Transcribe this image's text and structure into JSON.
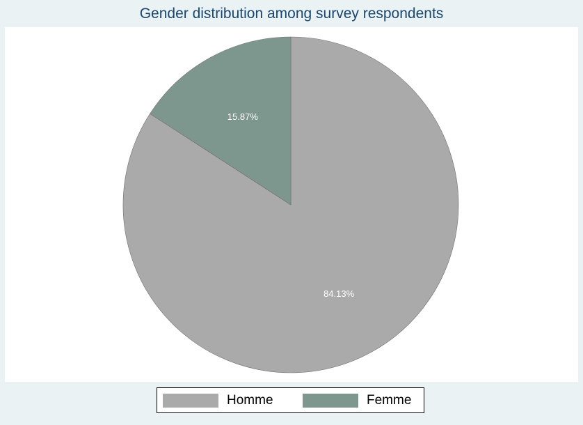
{
  "chart_data": {
    "type": "pie",
    "title": "Gender distribution among survey respondents",
    "slices": [
      {
        "label": "Homme",
        "value": 84.13,
        "display": "84.13%",
        "color": "#aaaaaa"
      },
      {
        "label": "Femme",
        "value": 15.87,
        "display": "15.87%",
        "color": "#7d978e"
      }
    ],
    "legend_position": "bottom",
    "background_color": "#eaf2f3",
    "plot_background_color": "#ffffff",
    "title_color": "#1a476f",
    "slice_label_color": "#ffffff"
  }
}
